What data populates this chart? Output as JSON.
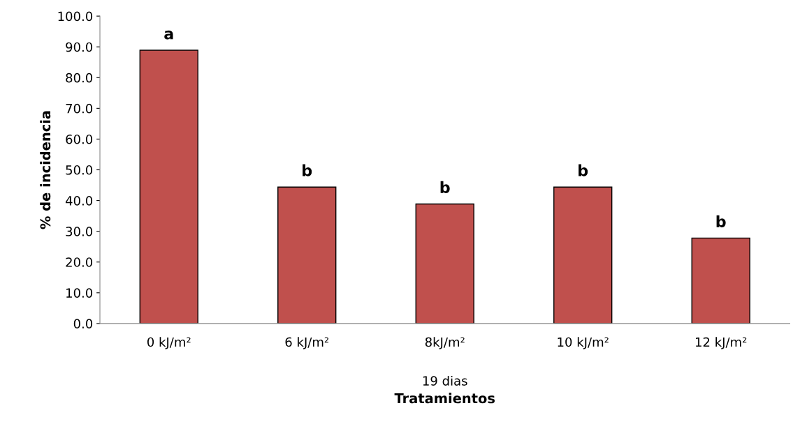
{
  "chart_data": {
    "type": "bar",
    "ylabel": "% de incidencia",
    "xlabel": "Tratamientos",
    "categories": [
      "0 kJ/m²",
      "6 kJ/m²",
      "8kJ/m²",
      "10 kJ/m²",
      "12 kJ/m²"
    ],
    "values": [
      88.9,
      44.4,
      38.9,
      44.4,
      27.8
    ],
    "color": "#c0504d",
    "ylim": [
      0,
      100
    ],
    "yticks": [
      {
        "value": 0,
        "label": "0.0"
      },
      {
        "value": 10,
        "label": "10.0"
      },
      {
        "value": 20,
        "label": "20.0"
      },
      {
        "value": 30,
        "label": "30.0"
      },
      {
        "value": 40,
        "label": "40.0"
      },
      {
        "value": 50,
        "label": "50.0"
      },
      {
        "value": 60,
        "label": "60.0"
      },
      {
        "value": 70,
        "label": "70.0"
      },
      {
        "value": 80,
        "label": "80.0"
      },
      {
        "value": 90,
        "label": "90.0"
      },
      {
        "value": 100,
        "label": "100.0"
      }
    ],
    "grid": false,
    "legend": false,
    "annotations": [
      {
        "text": "a",
        "x": "0 kJ/m²",
        "y": 88.9
      },
      {
        "text": "b",
        "x": "6 kJ/m²",
        "y": 44.4
      },
      {
        "text": "b",
        "x": "8kJ/m²",
        "y": 38.9
      },
      {
        "text": "b",
        "x": "10 kJ/m²",
        "y": 44.4
      },
      {
        "text": "b",
        "x": "12 kJ/m²",
        "y": 27.8
      },
      "19 dias"
    ]
  }
}
